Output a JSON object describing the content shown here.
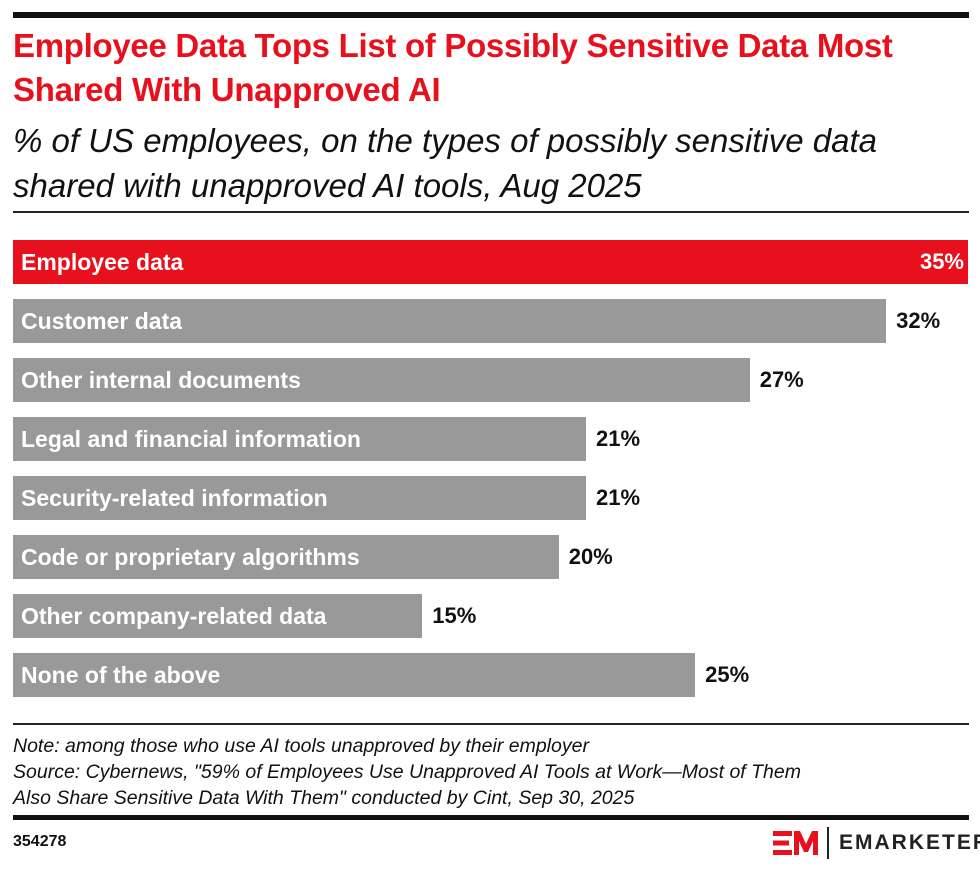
{
  "title": "Employee Data Tops List of Possibly Sensitive Data Most Shared With Unapproved AI",
  "subtitle": "% of US employees, on the types of possibly sensitive data shared with unapproved AI tools, Aug 2025",
  "chart_data": {
    "type": "bar",
    "orientation": "horizontal",
    "categories": [
      "Employee data",
      "Customer data",
      "Other internal documents",
      "Legal and financial information",
      "Security-related information",
      "Code or proprietary algorithms",
      "Other company-related data",
      "None of the above"
    ],
    "values": [
      35,
      32,
      27,
      21,
      21,
      20,
      15,
      25
    ],
    "value_labels": [
      "35%",
      "32%",
      "27%",
      "21%",
      "21%",
      "20%",
      "15%",
      "25%"
    ],
    "highlight_index": 0,
    "colors": {
      "highlight": "#e8101d",
      "default": "#999999"
    },
    "xlim": [
      0,
      35
    ],
    "grid": false
  },
  "note": "Note: among those who use AI tools unapproved by their employer",
  "source_line1": "Source: Cybernews, \"59% of Employees Use Unapproved AI Tools at Work—Most of Them",
  "source_line2": "Also Share Sensitive Data With Them\" conducted by Cint, Sep 30, 2025",
  "chart_id": "354278",
  "brand": {
    "mark": "EM",
    "name": "EMARKETER",
    "color": "#e8101d"
  }
}
